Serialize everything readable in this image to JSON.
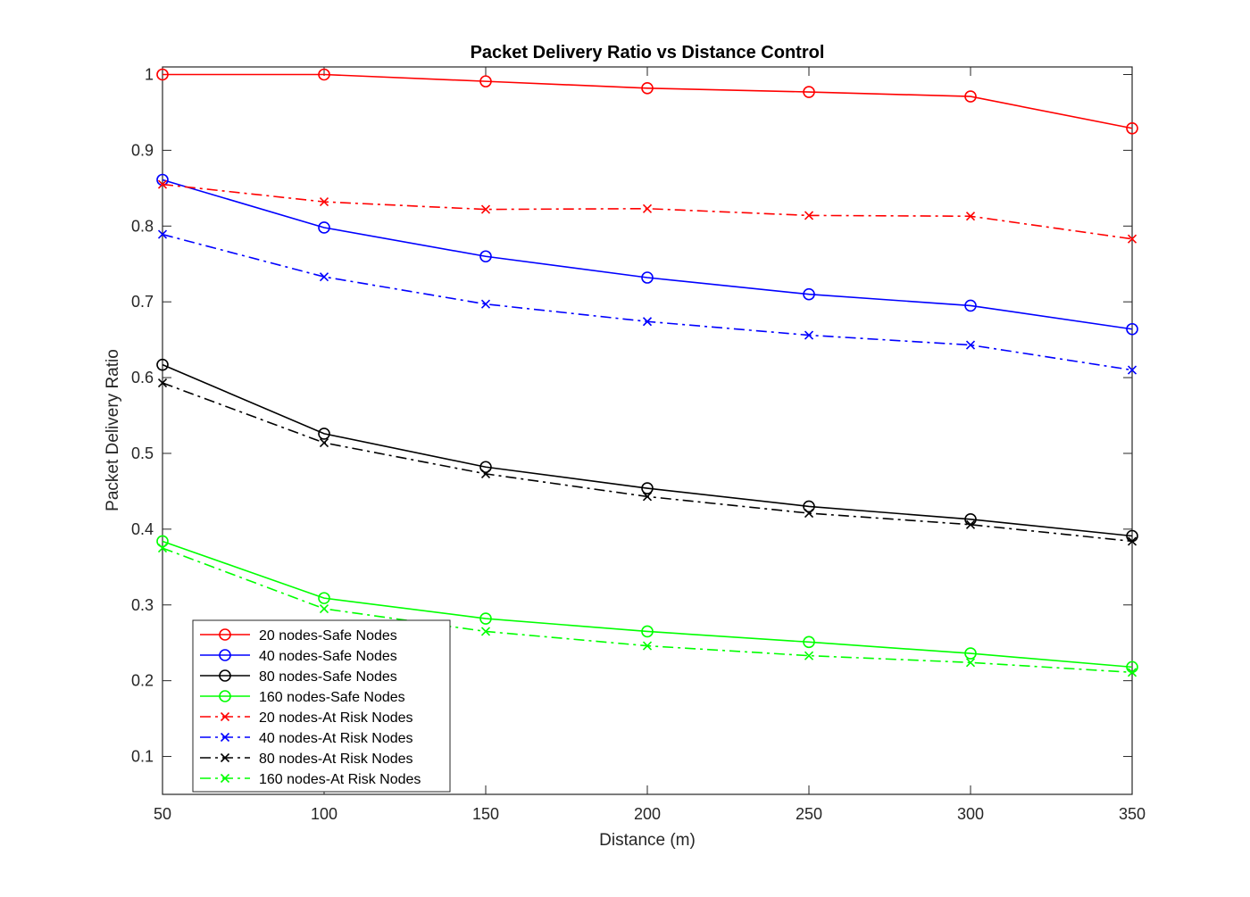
{
  "chart_data": {
    "type": "line",
    "title": "Packet Delivery Ratio vs Distance Control",
    "xlabel": "Distance (m)",
    "ylabel": "Packet Delivery Ratio",
    "xlim": [
      50,
      350
    ],
    "ylim": [
      0.05,
      1.01
    ],
    "xticks": [
      50,
      100,
      150,
      200,
      250,
      300,
      350
    ],
    "yticks": [
      0.1,
      0.2,
      0.3,
      0.4,
      0.5,
      0.6,
      0.7,
      0.8,
      0.9,
      1
    ],
    "ytick_labels": [
      "0.1",
      "0.2",
      "0.3",
      "0.4",
      "0.5",
      "0.6",
      "0.7",
      "0.8",
      "0.9",
      "1"
    ],
    "grid": false,
    "legend_position": "bottom-left",
    "x": [
      50,
      100,
      150,
      200,
      250,
      300,
      350
    ],
    "series": [
      {
        "name": "20 nodes-Safe Nodes",
        "color": "#ff0000",
        "marker": "circle",
        "line_style": "solid",
        "values": [
          1.0,
          1.0,
          0.991,
          0.982,
          0.977,
          0.971,
          0.929
        ]
      },
      {
        "name": "40 nodes-Safe Nodes",
        "color": "#0000ff",
        "marker": "circle",
        "line_style": "solid",
        "values": [
          0.861,
          0.798,
          0.76,
          0.732,
          0.71,
          0.695,
          0.664
        ]
      },
      {
        "name": "80 nodes-Safe Nodes",
        "color": "#000000",
        "marker": "circle",
        "line_style": "solid",
        "values": [
          0.617,
          0.526,
          0.482,
          0.454,
          0.43,
          0.413,
          0.391
        ]
      },
      {
        "name": "160 nodes-Safe Nodes",
        "color": "#00ff00",
        "marker": "circle",
        "line_style": "solid",
        "values": [
          0.384,
          0.309,
          0.282,
          0.265,
          0.251,
          0.236,
          0.218
        ]
      },
      {
        "name": "20 nodes-At Risk Nodes",
        "color": "#ff0000",
        "marker": "x",
        "line_style": "dashdot",
        "values": [
          0.855,
          0.832,
          0.822,
          0.823,
          0.814,
          0.813,
          0.783
        ]
      },
      {
        "name": "40 nodes-At Risk Nodes",
        "color": "#0000ff",
        "marker": "x",
        "line_style": "dashdot",
        "values": [
          0.789,
          0.733,
          0.697,
          0.674,
          0.656,
          0.643,
          0.61
        ]
      },
      {
        "name": "80 nodes-At Risk Nodes",
        "color": "#000000",
        "marker": "x",
        "line_style": "dashdot",
        "values": [
          0.593,
          0.514,
          0.473,
          0.443,
          0.421,
          0.406,
          0.384
        ]
      },
      {
        "name": "160 nodes-At Risk Nodes",
        "color": "#00ff00",
        "marker": "x",
        "line_style": "dashdot",
        "values": [
          0.375,
          0.295,
          0.265,
          0.246,
          0.233,
          0.224,
          0.211
        ]
      }
    ]
  }
}
